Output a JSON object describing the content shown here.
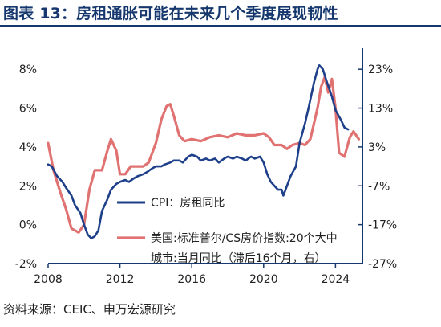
{
  "header": {
    "title": "图表 13：房租通胀可能在未来几个季度展现韧性"
  },
  "footer": {
    "source": "资料来源：CEIC、申万宏源研究"
  },
  "colors": {
    "title": "#16386e",
    "cpi_rent": "#1e3f8a",
    "case_shiller": "#e07272",
    "axis": "#16386e"
  },
  "chart_data": {
    "type": "line",
    "title": "",
    "x_ticks": [
      "2008",
      "2012",
      "2016",
      "2020",
      "2024"
    ],
    "xlim": [
      2008,
      2025.5
    ],
    "left_axis": {
      "ylim": [
        -2,
        9
      ],
      "ticks": [
        -2,
        0,
        2,
        4,
        6,
        8
      ],
      "tick_labels": [
        "-2%",
        "0%",
        "2%",
        "4%",
        "6%",
        "8%"
      ]
    },
    "right_axis": {
      "ylim": [
        -27,
        28
      ],
      "ticks": [
        -27,
        -17,
        -7,
        3,
        13,
        23
      ],
      "tick_labels": [
        "-27%",
        "-17%",
        "-7%",
        "3%",
        "13%",
        "23%"
      ]
    },
    "legend_position": "bottom-right",
    "series": [
      {
        "name": "CPI：房租同比",
        "axis": "left",
        "color": "#1e3f8a",
        "x": [
          2008.0,
          2008.2,
          2008.5,
          2008.8,
          2009.0,
          2009.3,
          2009.5,
          2009.8,
          2010.0,
          2010.2,
          2010.4,
          2010.6,
          2010.8,
          2011.0,
          2011.3,
          2011.5,
          2011.8,
          2012.0,
          2012.3,
          2012.5,
          2012.8,
          2013.0,
          2013.3,
          2013.5,
          2013.8,
          2014.0,
          2014.3,
          2014.5,
          2014.8,
          2015.0,
          2015.3,
          2015.5,
          2015.8,
          2016.0,
          2016.3,
          2016.5,
          2016.8,
          2017.0,
          2017.3,
          2017.5,
          2017.8,
          2018.0,
          2018.3,
          2018.5,
          2018.8,
          2019.0,
          2019.3,
          2019.5,
          2019.8,
          2020.0,
          2020.2,
          2020.4,
          2020.6,
          2020.8,
          2021.0,
          2021.1,
          2021.3,
          2021.5,
          2021.8,
          2022.0,
          2022.3,
          2022.5,
          2022.8,
          2023.0,
          2023.1,
          2023.3,
          2023.5,
          2023.8,
          2024.0,
          2024.3,
          2024.5,
          2024.7
        ],
        "values": [
          3.1,
          3.0,
          2.5,
          2.2,
          1.9,
          1.5,
          1.0,
          0.6,
          0.0,
          -0.5,
          -0.7,
          -0.6,
          -0.3,
          0.7,
          1.3,
          1.8,
          2.1,
          2.2,
          2.3,
          2.2,
          2.4,
          2.5,
          2.6,
          2.7,
          2.9,
          3.0,
          3.0,
          3.1,
          3.2,
          3.3,
          3.3,
          3.2,
          3.5,
          3.6,
          3.5,
          3.3,
          3.4,
          3.3,
          3.4,
          3.2,
          3.4,
          3.5,
          3.4,
          3.5,
          3.4,
          3.3,
          3.5,
          3.4,
          3.5,
          3.2,
          2.6,
          2.2,
          2.0,
          1.8,
          1.8,
          1.5,
          2.0,
          2.5,
          3.0,
          4.2,
          5.2,
          6.0,
          7.3,
          8.0,
          8.2,
          8.0,
          7.4,
          6.6,
          5.9,
          5.4,
          5.0,
          4.9
        ]
      },
      {
        "name": "美国:标准普尔/CS房价指数:20个大中城市:当月同比（滞后16个月，右）",
        "axis": "right",
        "color": "#e07272",
        "x": [
          2008.0,
          2008.3,
          2008.7,
          2009.0,
          2009.3,
          2009.7,
          2010.0,
          2010.3,
          2010.6,
          2011.0,
          2011.3,
          2011.5,
          2011.8,
          2012.0,
          2012.3,
          2012.6,
          2013.0,
          2013.3,
          2013.6,
          2014.0,
          2014.3,
          2014.6,
          2014.8,
          2015.0,
          2015.3,
          2015.6,
          2016.0,
          2016.5,
          2017.0,
          2017.5,
          2018.0,
          2018.5,
          2019.0,
          2019.5,
          2020.0,
          2020.3,
          2020.6,
          2021.0,
          2021.3,
          2021.6,
          2022.0,
          2022.3,
          2022.6,
          2023.0,
          2023.2,
          2023.4,
          2023.6,
          2023.8,
          2024.0,
          2024.2,
          2024.5,
          2024.8,
          2025.0,
          2025.3
        ],
        "values": [
          4.0,
          -3.0,
          -9.0,
          -13.0,
          -18.0,
          -19.0,
          -17.0,
          -8.0,
          -3.0,
          -3.0,
          2.0,
          5.0,
          2.0,
          -4.0,
          -4.0,
          -2.0,
          -2.0,
          -2.0,
          -1.0,
          4.0,
          10.0,
          13.5,
          14.0,
          11.0,
          6.0,
          4.5,
          5.0,
          4.5,
          5.5,
          6.0,
          5.5,
          6.5,
          6.0,
          6.0,
          6.5,
          5.5,
          3.5,
          3.5,
          2.5,
          3.5,
          4.0,
          3.5,
          5.0,
          13.0,
          18.5,
          21.0,
          17.0,
          20.5,
          13.0,
          1.5,
          0.5,
          5.5,
          7.0,
          5.0
        ]
      }
    ]
  }
}
